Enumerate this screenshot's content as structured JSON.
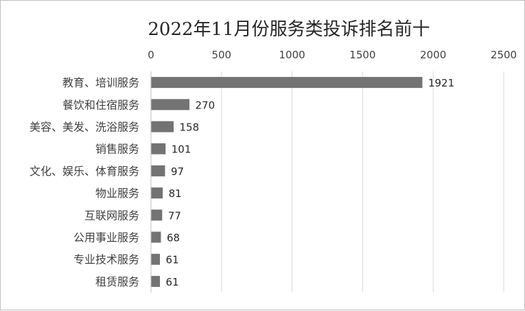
{
  "chart_data": {
    "type": "bar",
    "orientation": "horizontal",
    "title": "2022年11月份服务类投诉排名前十",
    "categories": [
      "教育、培训服务",
      "餐饮和住宿服务",
      "美容、美发、洗浴服务",
      "销售服务",
      "文化、娱乐、体育服务",
      "物业服务",
      "互联网服务",
      "公用事业服务",
      "专业技术服务",
      "租赁服务"
    ],
    "values": [
      1921,
      270,
      158,
      101,
      97,
      81,
      77,
      68,
      61,
      61
    ],
    "xlim": [
      0,
      2500
    ],
    "xticks": [
      0,
      500,
      1000,
      1500,
      2000,
      2500
    ],
    "xlabel": "",
    "ylabel": "",
    "x_axis_position": "top",
    "grid": true,
    "legend": "none",
    "bar_color": "#737373",
    "data_labels": true
  }
}
